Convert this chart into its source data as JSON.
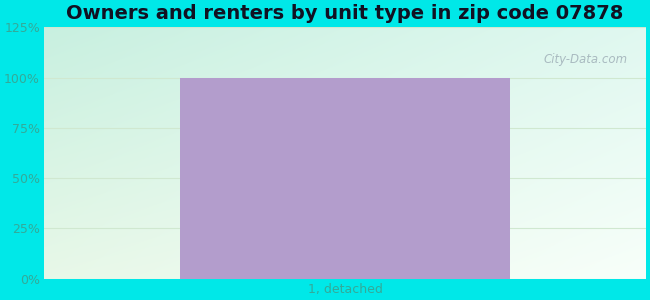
{
  "title": "Owners and renters by unit type in zip code 07878",
  "categories": [
    "1, detached"
  ],
  "values": [
    100
  ],
  "bar_color": "#b39dcc",
  "ylim": [
    0,
    125
  ],
  "yticks": [
    0,
    25,
    50,
    75,
    100,
    125
  ],
  "ytick_labels": [
    "0%",
    "25%",
    "50%",
    "75%",
    "100%",
    "125%"
  ],
  "title_fontsize": 14,
  "tick_fontsize": 9,
  "background_outer": "#00e8e8",
  "grid_color": "#d0e8d0",
  "tick_color": "#33aa99",
  "watermark_text": "City-Data.com",
  "bar_width": 0.55,
  "figsize": [
    6.5,
    3.0
  ],
  "dpi": 100
}
